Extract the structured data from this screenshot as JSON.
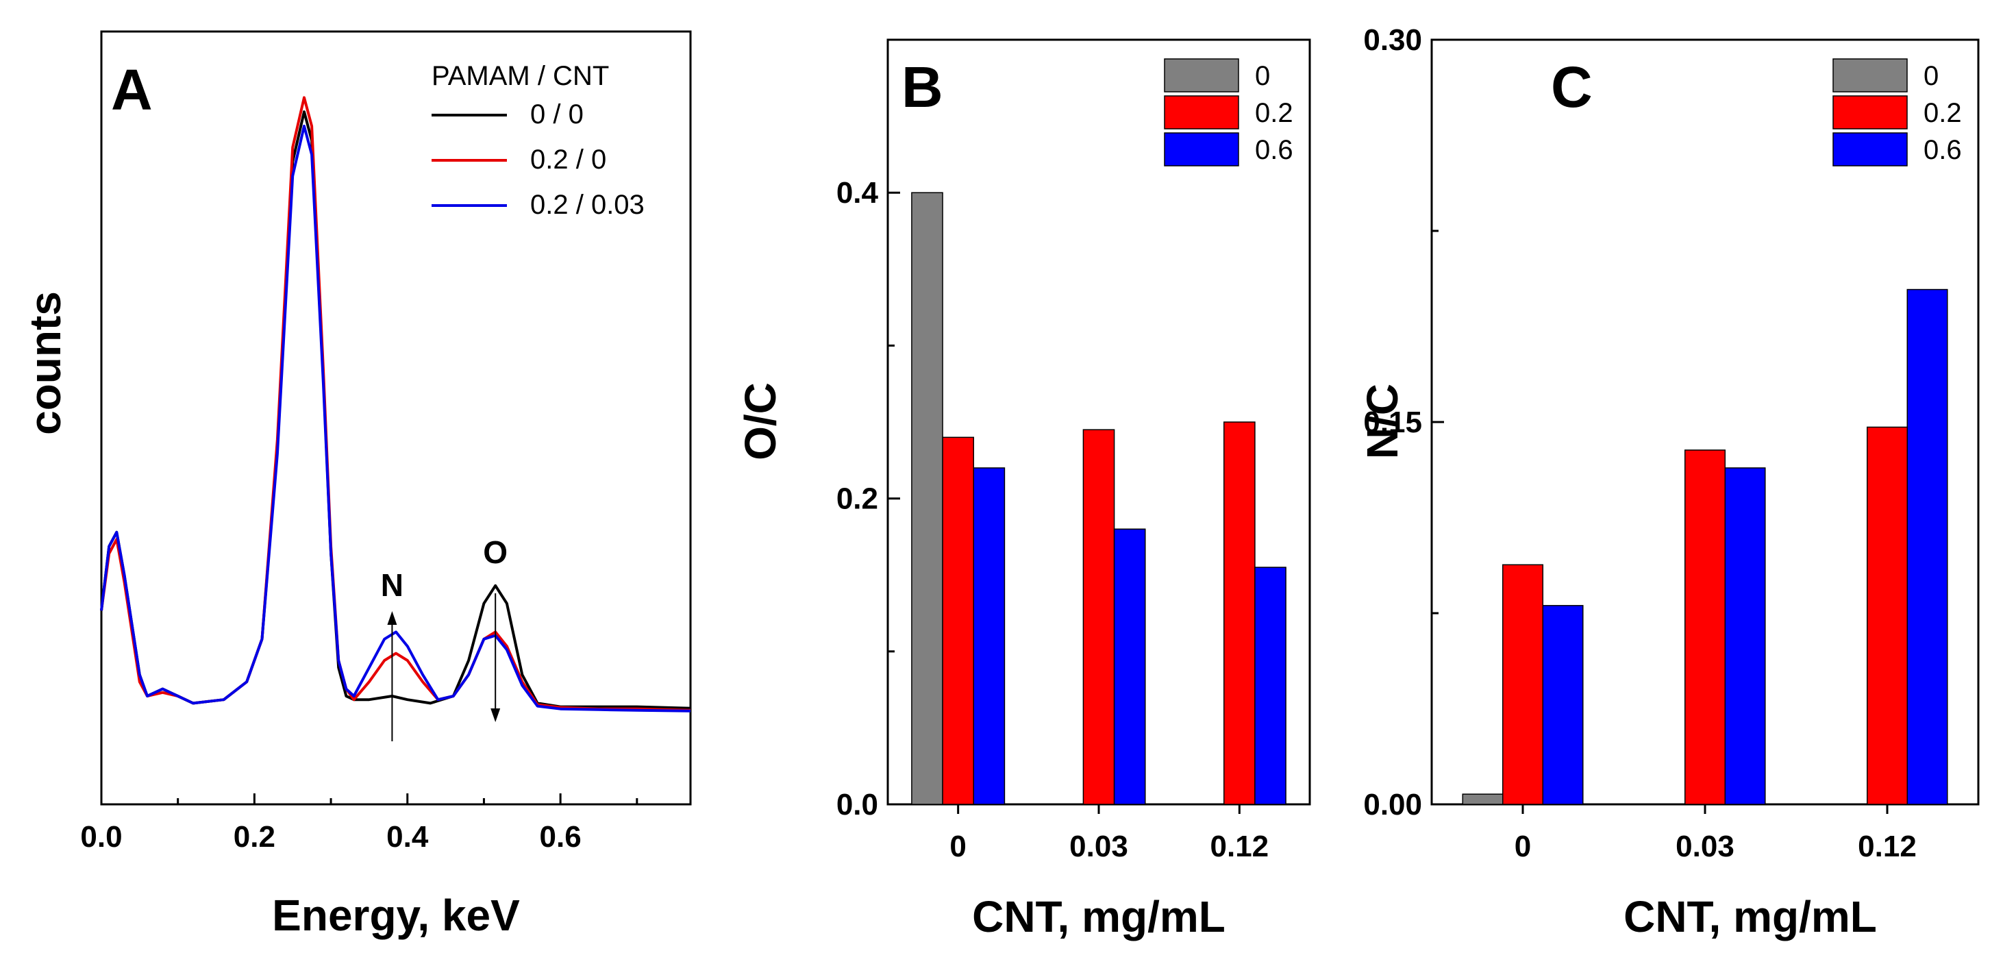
{
  "chart_data": [
    {
      "panel": "A",
      "type": "line",
      "xlabel": "Energy, keV",
      "ylabel": "counts",
      "xlim": [
        0.0,
        0.77
      ],
      "ylim": [
        0,
        1.0
      ],
      "xticks": [
        "0.0",
        "0.2",
        "0.4",
        "0.6"
      ],
      "legend_title": "PAMAM / CNT",
      "legend_position": "top-right",
      "annotations": [
        {
          "text": "N",
          "x": 0.38,
          "direction": "up"
        },
        {
          "text": "O",
          "x": 0.515,
          "direction": "down"
        }
      ],
      "series": [
        {
          "name": "0 / 0",
          "color": "#000000",
          "x": [
            0.0,
            0.01,
            0.02,
            0.03,
            0.05,
            0.06,
            0.08,
            0.1,
            0.12,
            0.16,
            0.19,
            0.21,
            0.23,
            0.25,
            0.265,
            0.275,
            0.29,
            0.3,
            0.31,
            0.32,
            0.33,
            0.35,
            0.38,
            0.4,
            0.43,
            0.46,
            0.48,
            0.5,
            0.515,
            0.53,
            0.55,
            0.57,
            0.6,
            0.65,
            0.7,
            0.77
          ],
          "y": [
            0.22,
            0.31,
            0.33,
            0.27,
            0.13,
            0.1,
            0.11,
            0.1,
            0.09,
            0.095,
            0.12,
            0.18,
            0.45,
            0.85,
            0.92,
            0.88,
            0.55,
            0.3,
            0.14,
            0.1,
            0.095,
            0.095,
            0.1,
            0.095,
            0.09,
            0.1,
            0.15,
            0.23,
            0.255,
            0.23,
            0.13,
            0.09,
            0.085,
            0.085,
            0.085,
            0.083
          ]
        },
        {
          "name": "0.2 / 0",
          "color": "#e60000",
          "x": [
            0.0,
            0.01,
            0.02,
            0.03,
            0.05,
            0.06,
            0.08,
            0.1,
            0.12,
            0.16,
            0.19,
            0.21,
            0.23,
            0.25,
            0.265,
            0.275,
            0.29,
            0.3,
            0.31,
            0.32,
            0.33,
            0.35,
            0.37,
            0.385,
            0.4,
            0.42,
            0.44,
            0.46,
            0.48,
            0.5,
            0.515,
            0.53,
            0.55,
            0.57,
            0.6,
            0.65,
            0.7,
            0.77
          ],
          "y": [
            0.22,
            0.3,
            0.32,
            0.26,
            0.12,
            0.1,
            0.105,
            0.1,
            0.09,
            0.095,
            0.12,
            0.18,
            0.46,
            0.87,
            0.94,
            0.9,
            0.56,
            0.31,
            0.15,
            0.11,
            0.095,
            0.12,
            0.15,
            0.16,
            0.15,
            0.12,
            0.095,
            0.1,
            0.13,
            0.18,
            0.19,
            0.17,
            0.12,
            0.088,
            0.084,
            0.082,
            0.082,
            0.08
          ]
        },
        {
          "name": "0.2 / 0.03",
          "color": "#0000e6",
          "x": [
            0.0,
            0.01,
            0.02,
            0.03,
            0.05,
            0.06,
            0.08,
            0.1,
            0.12,
            0.16,
            0.19,
            0.21,
            0.23,
            0.25,
            0.265,
            0.275,
            0.29,
            0.3,
            0.31,
            0.32,
            0.33,
            0.35,
            0.37,
            0.385,
            0.4,
            0.42,
            0.44,
            0.46,
            0.48,
            0.5,
            0.515,
            0.53,
            0.55,
            0.57,
            0.6,
            0.65,
            0.7,
            0.77
          ],
          "y": [
            0.22,
            0.31,
            0.33,
            0.27,
            0.13,
            0.1,
            0.11,
            0.1,
            0.09,
            0.095,
            0.12,
            0.18,
            0.44,
            0.83,
            0.9,
            0.86,
            0.54,
            0.3,
            0.15,
            0.11,
            0.1,
            0.14,
            0.18,
            0.19,
            0.17,
            0.13,
            0.095,
            0.1,
            0.13,
            0.18,
            0.185,
            0.165,
            0.115,
            0.086,
            0.082,
            0.081,
            0.08,
            0.079
          ]
        }
      ]
    },
    {
      "panel": "B",
      "type": "bar",
      "xlabel": "CNT, mg/mL",
      "ylabel": "O/C",
      "ylim": [
        0.0,
        0.5
      ],
      "yticks": [
        "0.0",
        "0.2",
        "0.4"
      ],
      "categories": [
        "0",
        "0.03",
        "0.12"
      ],
      "legend_position": "top-right",
      "series": [
        {
          "name": "0",
          "color": "#808080",
          "values": [
            0.4,
            null,
            null
          ]
        },
        {
          "name": "0.2",
          "color": "#ff0000",
          "values": [
            0.24,
            0.245,
            0.25
          ]
        },
        {
          "name": "0.6",
          "color": "#0000ff",
          "values": [
            0.22,
            0.18,
            0.155
          ]
        }
      ]
    },
    {
      "panel": "C",
      "type": "bar",
      "xlabel": "CNT, mg/mL",
      "ylabel": "N/C",
      "ylim": [
        0.0,
        0.3
      ],
      "yticks": [
        "0.00",
        "0.15",
        "0.30"
      ],
      "categories": [
        "0",
        "0.03",
        "0.12"
      ],
      "legend_position": "top-right",
      "series": [
        {
          "name": "0",
          "color": "#808080",
          "values": [
            0.004,
            null,
            null
          ]
        },
        {
          "name": "0.2",
          "color": "#ff0000",
          "values": [
            0.094,
            0.139,
            0.148
          ]
        },
        {
          "name": "0.6",
          "color": "#0000ff",
          "values": [
            0.078,
            0.132,
            0.202
          ]
        }
      ]
    }
  ]
}
